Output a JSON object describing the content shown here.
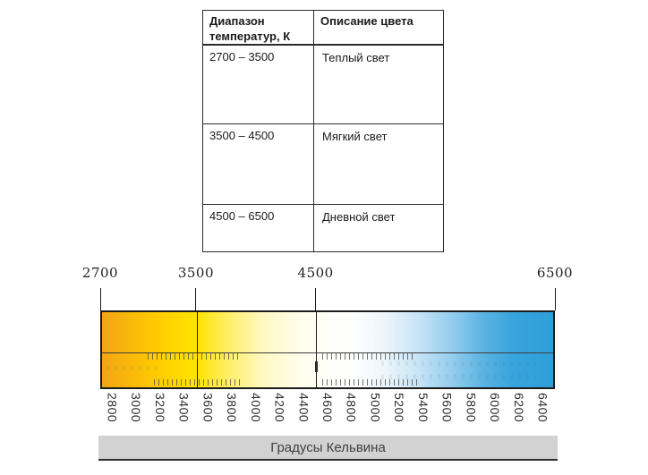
{
  "table": {
    "headers": [
      {
        "label": "Диапазон температур, К"
      },
      {
        "label": "Описание цвета"
      }
    ],
    "rows": [
      {
        "range": "2700 – 3500",
        "description": "Теплый свет"
      },
      {
        "range": "3500 – 4500",
        "description": "Мягкий свет"
      },
      {
        "range": "4500 – 6500",
        "description": "Дневной свет"
      }
    ]
  },
  "scale": {
    "k_min": 2700,
    "k_max": 6500,
    "top_markers": [
      {
        "k": 2700,
        "label": "2700"
      },
      {
        "k": 3500,
        "label": "3500"
      },
      {
        "k": 4500,
        "label": "4500"
      },
      {
        "k": 6500,
        "label": "6500"
      }
    ],
    "guide_lines": [
      {
        "k": 3500
      },
      {
        "k": 4500
      }
    ],
    "bottom_labels": [
      {
        "k": 2800,
        "label": "2800"
      },
      {
        "k": 3000,
        "label": "3000"
      },
      {
        "k": 3200,
        "label": "3200"
      },
      {
        "k": 3400,
        "label": "3400"
      },
      {
        "k": 3600,
        "label": "3600"
      },
      {
        "k": 3800,
        "label": "3800"
      },
      {
        "k": 4000,
        "label": "4000"
      },
      {
        "k": 4200,
        "label": "4200"
      },
      {
        "k": 4400,
        "label": "4400"
      },
      {
        "k": 4600,
        "label": "4600"
      },
      {
        "k": 4800,
        "label": "4800"
      },
      {
        "k": 5000,
        "label": "5000"
      },
      {
        "k": 5200,
        "label": "5200"
      },
      {
        "k": 5400,
        "label": "5400"
      },
      {
        "k": 5600,
        "label": "5600"
      },
      {
        "k": 5800,
        "label": "5800"
      },
      {
        "k": 6000,
        "label": "6000"
      },
      {
        "k": 6200,
        "label": "6200"
      },
      {
        "k": 6400,
        "label": "6400"
      }
    ],
    "axis_caption": "Градусы Кельвина",
    "gradient_stops": [
      {
        "pos": 0.0,
        "color": "#F3A315"
      },
      {
        "pos": 0.055,
        "color": "#F8B60C"
      },
      {
        "pos": 0.12,
        "color": "#FFCB00"
      },
      {
        "pos": 0.21,
        "color": "#FFE400"
      },
      {
        "pos": 0.285,
        "color": "#FFEF6E"
      },
      {
        "pos": 0.36,
        "color": "#FFF9C4"
      },
      {
        "pos": 0.44,
        "color": "#FFFDEC"
      },
      {
        "pos": 0.5,
        "color": "#FFFFFA"
      },
      {
        "pos": 0.565,
        "color": "#FDFEFE"
      },
      {
        "pos": 0.625,
        "color": "#EDF6FC"
      },
      {
        "pos": 0.7,
        "color": "#C7E4F6"
      },
      {
        "pos": 0.775,
        "color": "#94CDEE"
      },
      {
        "pos": 0.845,
        "color": "#5BB3E2"
      },
      {
        "pos": 0.91,
        "color": "#38A4DC"
      },
      {
        "pos": 1.0,
        "color": "#2E9FD9"
      }
    ]
  }
}
